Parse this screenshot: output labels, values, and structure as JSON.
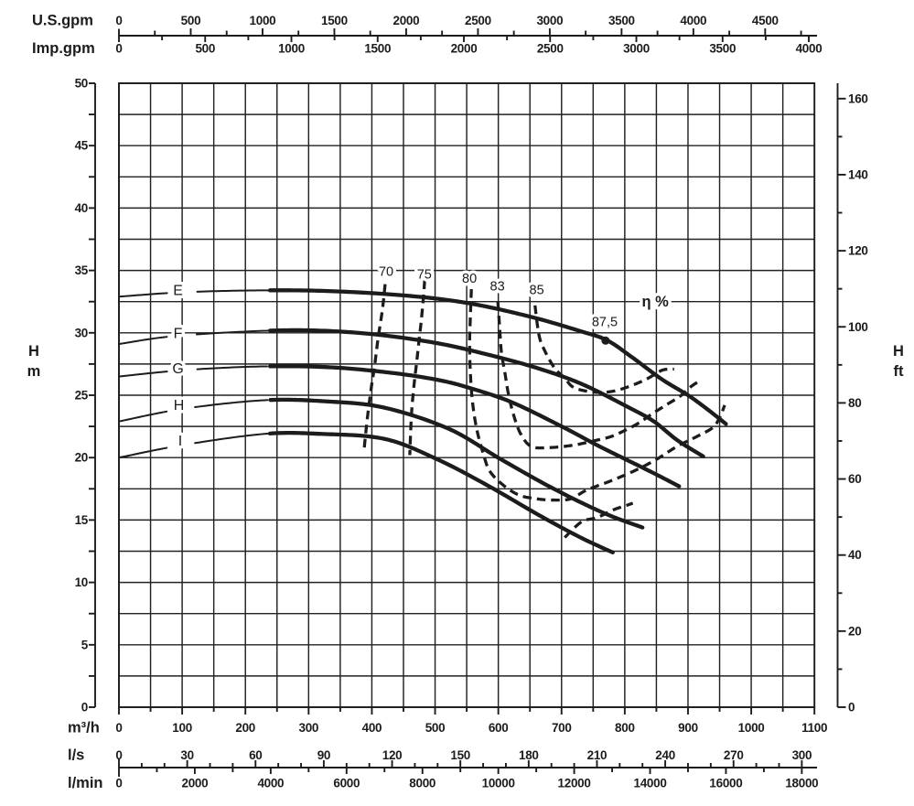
{
  "style": {
    "background": "#ffffff",
    "ink": "#1c1c1c",
    "grid_color": "#222222"
  },
  "chart_data": {
    "type": "line",
    "grid": "on",
    "y_axis_left": {
      "unit_labels": [
        "H",
        "m"
      ],
      "min": 0,
      "max": 50,
      "tick_step": 2.5,
      "label_step": 5,
      "tick_labels": [
        "0",
        "5",
        "10",
        "15",
        "20",
        "25",
        "30",
        "35",
        "40",
        "45",
        "50"
      ]
    },
    "y_axis_right": {
      "unit_labels": [
        "H",
        "ft"
      ],
      "min": 0,
      "max": 160,
      "tick_step": 10,
      "label_step": 20,
      "meters_per_unit": 0.3048,
      "tick_labels": [
        "0",
        "20",
        "40",
        "60",
        "80",
        "100",
        "120",
        "140",
        "160"
      ]
    },
    "x_axis_m3h": {
      "unit_label": "m³/h",
      "min": 0,
      "max": 1100,
      "tick_step": 50,
      "label_step": 100,
      "m3h_per_unit": 1,
      "tick_labels": [
        "0",
        "100",
        "200",
        "300",
        "400",
        "500",
        "600",
        "700",
        "800",
        "900",
        "1000",
        "1100"
      ]
    },
    "x_axis_ls": {
      "unit_label": "l/s",
      "min": 0,
      "max": 300,
      "tick_step": 10,
      "label_step": 30,
      "m3h_per_unit": 3.6,
      "tick_labels": [
        "0",
        "30",
        "60",
        "90",
        "120",
        "150",
        "180",
        "210",
        "240",
        "270",
        "300"
      ]
    },
    "x_axis_lmin": {
      "unit_label": "l/min",
      "min": 0,
      "max": 18000,
      "tick_step": 1000,
      "label_step": 2000,
      "m3h_per_unit": 0.06,
      "tick_labels": [
        "0",
        "2000",
        "4000",
        "6000",
        "8000",
        "10000",
        "12000",
        "14000",
        "16000",
        "18000"
      ]
    },
    "x_axis_usgpm": {
      "unit_label": "U.S.gpm",
      "min": 0,
      "max": 4500,
      "tick_step": 250,
      "label_step": 500,
      "tick_max": 4750,
      "m3h_per_unit": 0.227125,
      "tick_labels": [
        "0",
        "500",
        "1000",
        "1500",
        "2000",
        "2500",
        "3000",
        "3500",
        "4000",
        "4500"
      ]
    },
    "x_axis_impgpm": {
      "unit_label": "Imp.gpm",
      "min": 0,
      "max": 4000,
      "tick_step": 250,
      "label_step": 500,
      "tick_max": 4000,
      "m3h_per_unit": 0.272766,
      "tick_labels": [
        "0",
        "500",
        "1000",
        "1500",
        "2000",
        "2500",
        "3000",
        "3500",
        "4000"
      ]
    },
    "head_curves": [
      {
        "name": "E",
        "label_at": [
          93.4,
          33.36
        ],
        "points": [
          [
            0,
            32.9
          ],
          [
            100,
            33.25
          ],
          [
            220,
            33.4
          ],
          [
            330,
            33.35
          ],
          [
            450,
            33.0
          ],
          [
            550,
            32.4
          ],
          [
            650,
            31.3
          ],
          [
            732,
            30.1
          ],
          [
            772,
            29.4
          ],
          [
            810,
            28.1
          ],
          [
            858,
            26.3
          ],
          [
            900,
            25.0
          ],
          [
            930,
            23.9
          ],
          [
            960,
            22.7
          ]
        ]
      },
      {
        "name": "F",
        "label_at": [
          93.4,
          29.91
        ],
        "points": [
          [
            0,
            29.1
          ],
          [
            80,
            29.7
          ],
          [
            200,
            30.1
          ],
          [
            300,
            30.2
          ],
          [
            400,
            29.9
          ],
          [
            500,
            29.2
          ],
          [
            580,
            28.3
          ],
          [
            660,
            27.2
          ],
          [
            732,
            25.9
          ],
          [
            807,
            24.0
          ],
          [
            846,
            22.9
          ],
          [
            883,
            21.4
          ],
          [
            924,
            20.1
          ]
        ]
      },
      {
        "name": "G",
        "label_at": [
          93.4,
          27.09
        ],
        "points": [
          [
            0,
            26.5
          ],
          [
            100,
            27.0
          ],
          [
            220,
            27.3
          ],
          [
            330,
            27.25
          ],
          [
            430,
            26.8
          ],
          [
            507,
            26.2
          ],
          [
            560,
            25.5
          ],
          [
            623,
            24.4
          ],
          [
            704,
            22.4
          ],
          [
            760,
            20.9
          ],
          [
            840,
            18.9
          ],
          [
            886,
            17.7
          ]
        ]
      },
      {
        "name": "H",
        "label_at": [
          94.8,
          24.16
        ],
        "points": [
          [
            0,
            22.9
          ],
          [
            100,
            23.9
          ],
          [
            230,
            24.6
          ],
          [
            330,
            24.5
          ],
          [
            420,
            24.0
          ],
          [
            522,
            22.3
          ],
          [
            603,
            19.9
          ],
          [
            684,
            17.6
          ],
          [
            765,
            15.6
          ],
          [
            828,
            14.4
          ]
        ]
      },
      {
        "name": "I",
        "label_at": [
          97.0,
          21.3
        ],
        "points": [
          [
            0,
            20.0
          ],
          [
            100,
            21.0
          ],
          [
            230,
            21.9
          ],
          [
            320,
            21.9
          ],
          [
            420,
            21.5
          ],
          [
            502,
            19.9
          ],
          [
            582,
            17.8
          ],
          [
            664,
            15.4
          ],
          [
            730,
            13.6
          ],
          [
            781,
            12.4
          ]
        ]
      }
    ],
    "curve_thick_from_q": 238,
    "curve_label_gap_q": [
      78,
      119
    ],
    "efficiency_contours": [
      {
        "label": "70",
        "label_at": [
          422.6,
          34.86
        ],
        "points": [
          [
            421,
            33.9
          ],
          [
            416.8,
            31.9
          ],
          [
            409.7,
            29.5
          ],
          [
            404.2,
            27.3
          ],
          [
            398.8,
            25.5
          ],
          [
            393.2,
            23.3
          ],
          [
            388.6,
            21.1
          ],
          [
            387.9,
            20.5
          ]
        ]
      },
      {
        "label": "75",
        "label_at": [
          483.0,
          34.64
        ],
        "points": [
          [
            483.5,
            34.2
          ],
          [
            481.8,
            33.0
          ],
          [
            478.2,
            31.0
          ],
          [
            474.6,
            29.4
          ],
          [
            471.0,
            27.7
          ],
          [
            467.3,
            26.1
          ],
          [
            463.7,
            24.2
          ],
          [
            461.8,
            22.6
          ],
          [
            460.0,
            20.2
          ]
        ]
      },
      {
        "label": "80",
        "label_at": [
          554.3,
          34.31
        ],
        "points": [
          [
            557.4,
            33.5
          ],
          [
            555.8,
            31.3
          ],
          [
            554.6,
            29.1
          ],
          [
            555.8,
            26.8
          ],
          [
            559.1,
            24.5
          ],
          [
            565.8,
            22.3
          ],
          [
            576.9,
            20.2
          ],
          [
            586.7,
            18.9
          ],
          [
            607.7,
            17.8
          ],
          [
            632.8,
            17.0
          ],
          [
            660.1,
            16.7
          ],
          [
            687.4,
            16.6
          ],
          [
            714.6,
            16.7
          ],
          [
            739.7,
            17.4
          ],
          [
            776.1,
            18.1
          ],
          [
            813.4,
            18.9
          ],
          [
            848.1,
            19.8
          ],
          [
            882.8,
            20.9
          ],
          [
            914.4,
            21.7
          ],
          [
            939,
            22.4
          ],
          [
            950,
            23.2
          ],
          [
            958,
            24.2
          ]
        ]
      },
      {
        "label": "83",
        "label_at": [
          598.5,
          33.69
        ],
        "points": [
          [
            599.3,
            32.5
          ],
          [
            602,
            30.5
          ],
          [
            604.8,
            28.5
          ],
          [
            610.4,
            26.8
          ],
          [
            616,
            25.1
          ],
          [
            624.3,
            23.4
          ],
          [
            635.4,
            21.9
          ],
          [
            652,
            20.9
          ],
          [
            680,
            20.8
          ],
          [
            719,
            21.0
          ],
          [
            756,
            21.4
          ],
          [
            779,
            21.7
          ],
          [
            801,
            22.2
          ],
          [
            823,
            22.8
          ],
          [
            843,
            23.5
          ],
          [
            868,
            24.3
          ],
          [
            887,
            24.9
          ],
          [
            905,
            25.7
          ],
          [
            917,
            26.1
          ]
        ]
      },
      {
        "label": "85",
        "label_at": [
          660.7,
          33.39
        ],
        "points": [
          [
            658,
            32.2
          ],
          [
            664.4,
            29.8
          ],
          [
            673.1,
            28.6
          ],
          [
            688.7,
            27.2
          ],
          [
            704.4,
            26.4
          ],
          [
            720.1,
            25.6
          ],
          [
            751.3,
            25.25
          ],
          [
            779.1,
            25.3
          ],
          [
            806.8,
            25.7
          ],
          [
            834.7,
            26.3
          ],
          [
            859,
            27.0
          ],
          [
            878,
            27.1
          ]
        ]
      }
    ],
    "efficiency_contour_branches": [
      {
        "of": "75",
        "points": [
          [
            705,
            13.6
          ],
          [
            731.6,
            14.85
          ],
          [
            756.5,
            15.2
          ],
          [
            781.2,
            15.8
          ],
          [
            804.5,
            16.2
          ],
          [
            812.7,
            16.35
          ]
        ]
      }
    ],
    "efficiency_axis_label": {
      "text": "η %",
      "at": [
        848.2,
        32.48
      ]
    },
    "best_efficiency_point": {
      "label": "87,5",
      "label_at": [
        768.3,
        30.83
      ],
      "dot": [
        769.6,
        29.38
      ]
    }
  }
}
